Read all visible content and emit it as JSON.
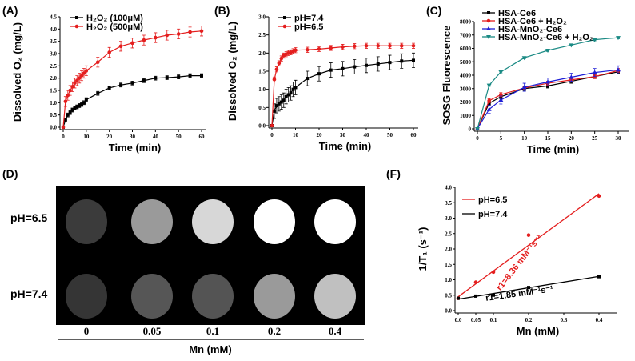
{
  "panels": {
    "A": "(A)",
    "B": "(B)",
    "C": "(C)",
    "D": "(D)",
    "F": "(F)"
  },
  "chart_data": [
    {
      "id": "A",
      "type": "line",
      "xlabel": "Time (min)",
      "ylabel": "Dissolved O₂ (mg/L)",
      "xlim": [
        0,
        60
      ],
      "ylim": [
        0,
        4.5
      ],
      "xticks": [
        0,
        10,
        20,
        30,
        40,
        50,
        60
      ],
      "yticks": [
        0,
        0.5,
        1,
        1.5,
        2,
        2.5,
        3,
        3.5,
        4,
        4.5
      ],
      "ydec": 1,
      "legend": "top-left",
      "x": [
        0,
        1,
        2,
        3,
        4,
        5,
        6,
        7,
        8,
        9,
        10,
        15,
        20,
        25,
        30,
        35,
        40,
        45,
        50,
        55,
        60
      ],
      "series": [
        {
          "name": "H₂O₂ (100μM)",
          "color": "#000000",
          "marker": "square",
          "err": 0.08,
          "values": [
            0,
            0.3,
            0.5,
            0.6,
            0.7,
            0.78,
            0.83,
            0.88,
            0.93,
            1.0,
            1.12,
            1.38,
            1.6,
            1.72,
            1.8,
            1.9,
            2.0,
            2.02,
            2.05,
            2.1,
            2.1
          ]
        },
        {
          "name": "H₂O₂ (500μM)",
          "color": "#e41e1e",
          "marker": "circle",
          "err": 0.2,
          "values": [
            0,
            1.05,
            1.3,
            1.5,
            1.65,
            1.8,
            1.9,
            2.0,
            2.1,
            2.2,
            2.3,
            2.65,
            3.05,
            3.3,
            3.43,
            3.55,
            3.65,
            3.75,
            3.8,
            3.88,
            3.92
          ]
        }
      ]
    },
    {
      "id": "B",
      "type": "line",
      "xlabel": "Time (min)",
      "ylabel": "Dissolved O₂ (mg/L)",
      "xlim": [
        0,
        60
      ],
      "ylim": [
        0,
        3
      ],
      "xticks": [
        0,
        10,
        20,
        30,
        40,
        50,
        60
      ],
      "yticks": [
        0,
        0.5,
        1,
        1.5,
        2,
        2.5,
        3
      ],
      "ydec": 1,
      "legend": "top-left",
      "x": [
        0,
        1,
        2,
        3,
        4,
        5,
        6,
        7,
        8,
        9,
        10,
        15,
        20,
        25,
        30,
        35,
        40,
        45,
        50,
        55,
        60
      ],
      "series": [
        {
          "name": "pH=7.4",
          "color": "#000000",
          "marker": "square",
          "err": 0.2,
          "values": [
            0,
            0.4,
            0.55,
            0.6,
            0.65,
            0.7,
            0.8,
            0.85,
            0.9,
            1.0,
            1.05,
            1.3,
            1.43,
            1.53,
            1.57,
            1.62,
            1.66,
            1.7,
            1.74,
            1.78,
            1.8
          ]
        },
        {
          "name": "pH=6.5",
          "color": "#e41e1e",
          "marker": "circle",
          "err": 0.07,
          "values": [
            0,
            1.27,
            1.55,
            1.72,
            1.85,
            1.93,
            1.97,
            2.0,
            2.02,
            2.05,
            2.08,
            2.09,
            2.11,
            2.14,
            2.17,
            2.19,
            2.2,
            2.2,
            2.2,
            2.2,
            2.2
          ]
        }
      ]
    },
    {
      "id": "C",
      "type": "line",
      "xlabel": "Time (min)",
      "ylabel": "SOSG Fluorescence",
      "xlim": [
        0,
        30
      ],
      "ylim": [
        0,
        8000
      ],
      "xticks": [
        0,
        5,
        10,
        15,
        20,
        25,
        30
      ],
      "yticks": [
        0,
        1000,
        2000,
        3000,
        4000,
        5000,
        6000,
        7000,
        8000
      ],
      "ydec": 0,
      "legend": "top-left",
      "x": [
        0,
        2.5,
        5,
        10,
        15,
        20,
        25,
        30
      ],
      "series": [
        {
          "name": "HSA-Ce6",
          "color": "#000000",
          "marker": "square",
          "err": 150,
          "values": [
            0,
            1900,
            2400,
            3000,
            3200,
            3550,
            3900,
            4250
          ]
        },
        {
          "name": "HSA-Ce6 + H₂O₂",
          "color": "#e41e1e",
          "marker": "circle",
          "err": 150,
          "values": [
            0,
            2100,
            2550,
            3050,
            3400,
            3650,
            3900,
            4350
          ]
        },
        {
          "name": "HSA-MnO₂-Ce6",
          "color": "#1f1fd6",
          "marker": "triangle-up",
          "err": 300,
          "values": [
            0,
            1450,
            2150,
            3100,
            3500,
            3850,
            4200,
            4400
          ]
        },
        {
          "name": "HSA-MnO₂-Ce6 + H₂O₂",
          "color": "#1a8a84",
          "marker": "triangle-down",
          "err": 80,
          "values": [
            0,
            3250,
            4250,
            5300,
            5850,
            6250,
            6650,
            6800
          ]
        }
      ]
    },
    {
      "id": "F",
      "type": "scatter",
      "xlabel": "Mn (mM)",
      "ylabel": "1/T₁ (s⁻¹)",
      "xlim": [
        0,
        0.45
      ],
      "ylim": [
        0,
        4
      ],
      "xticks": [
        0,
        0.05,
        0.1,
        0.2,
        0.3,
        0.4
      ],
      "xticklabels": [
        "0.0",
        "0.05",
        "0.1",
        "0.2",
        "0.3",
        "0.4"
      ],
      "yticks": [
        0,
        0.5,
        1,
        1.5,
        2,
        2.5,
        3,
        3.5,
        4
      ],
      "ydec": 1,
      "legend": "top-left",
      "x": [
        0,
        0.05,
        0.1,
        0.2,
        0.4
      ],
      "series": [
        {
          "name": "pH=6.5",
          "color": "#e41e1e",
          "marker": "circle",
          "values": [
            0.4,
            0.92,
            1.25,
            2.45,
            3.72
          ],
          "fit": {
            "intercept": 0.45,
            "slope": 8.36,
            "label": "r1=8.36 mM⁻¹s⁻¹"
          }
        },
        {
          "name": "pH=7.4",
          "color": "#000000",
          "marker": "square",
          "values": [
            0.4,
            0.47,
            0.5,
            0.75,
            1.1
          ],
          "fit": {
            "intercept": 0.37,
            "slope": 1.85,
            "label": "r1=1.85 mM⁻¹s⁻¹"
          }
        }
      ]
    }
  ],
  "mri": {
    "rows": [
      {
        "label": "pH=6.5",
        "intensities": [
          0.13,
          0.55,
          0.82,
          1.0,
          1.0
        ]
      },
      {
        "label": "pH=7.4",
        "intensities": [
          0.1,
          0.25,
          0.24,
          0.55,
          0.72
        ]
      }
    ],
    "columns": [
      "0",
      "0.05",
      "0.1",
      "0.2",
      "0.4"
    ],
    "xlabel": "Mn (mM)"
  }
}
